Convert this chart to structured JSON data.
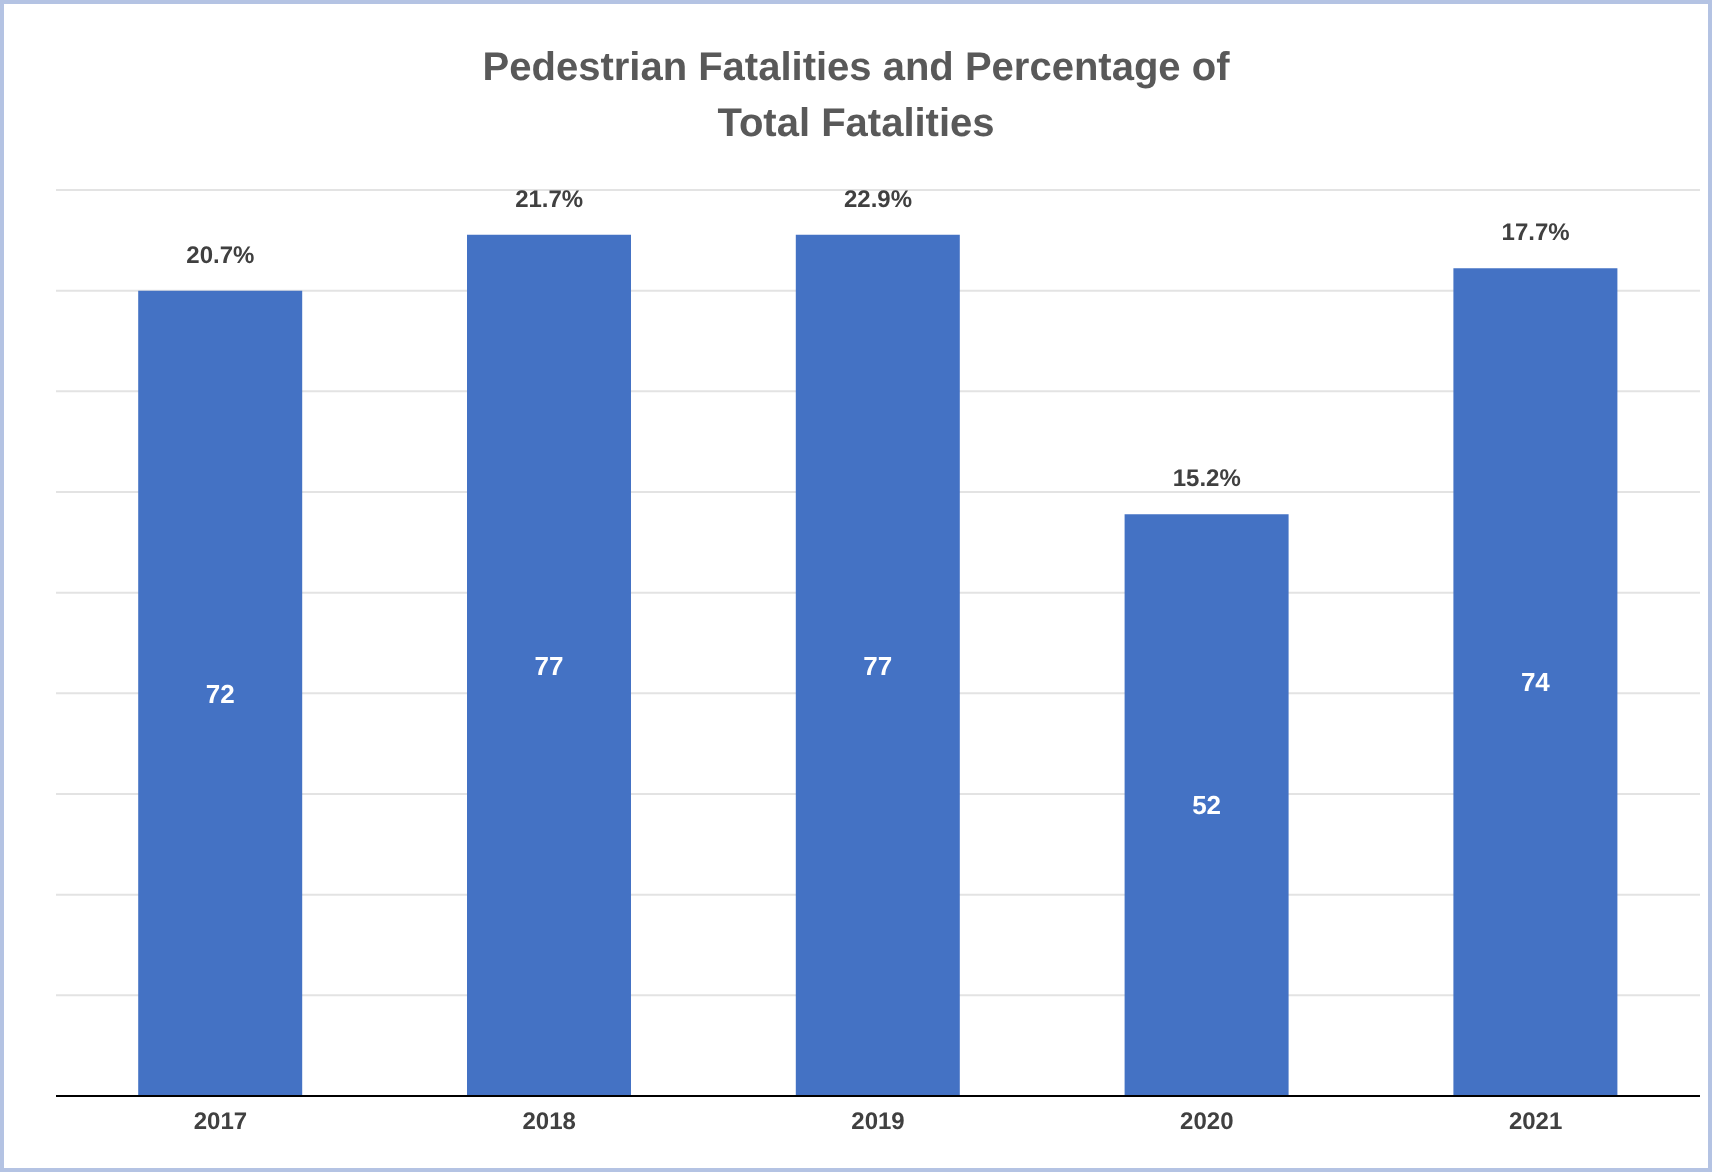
{
  "chart_data": {
    "type": "bar",
    "title": "Pedestrian Fatalities and Percentage of Total Fatalities",
    "categories": [
      "2017",
      "2018",
      "2019",
      "2020",
      "2021"
    ],
    "values": [
      72,
      77,
      77,
      52,
      74
    ],
    "color": "#4472c4",
    "data_labels": true,
    "grid": "y",
    "tick_labels": "x",
    "annotations": [
      {
        "text": "20.7%",
        "x": "2017",
        "y": 72
      },
      {
        "text": "21.7%",
        "x": "2018",
        "y": 77
      },
      {
        "text": "22.9%",
        "x": "2019",
        "y": 77
      },
      {
        "text": "15.2%",
        "x": "2020",
        "y": 52
      },
      {
        "text": "17.7%",
        "x": "2021",
        "y": 74
      }
    ]
  }
}
